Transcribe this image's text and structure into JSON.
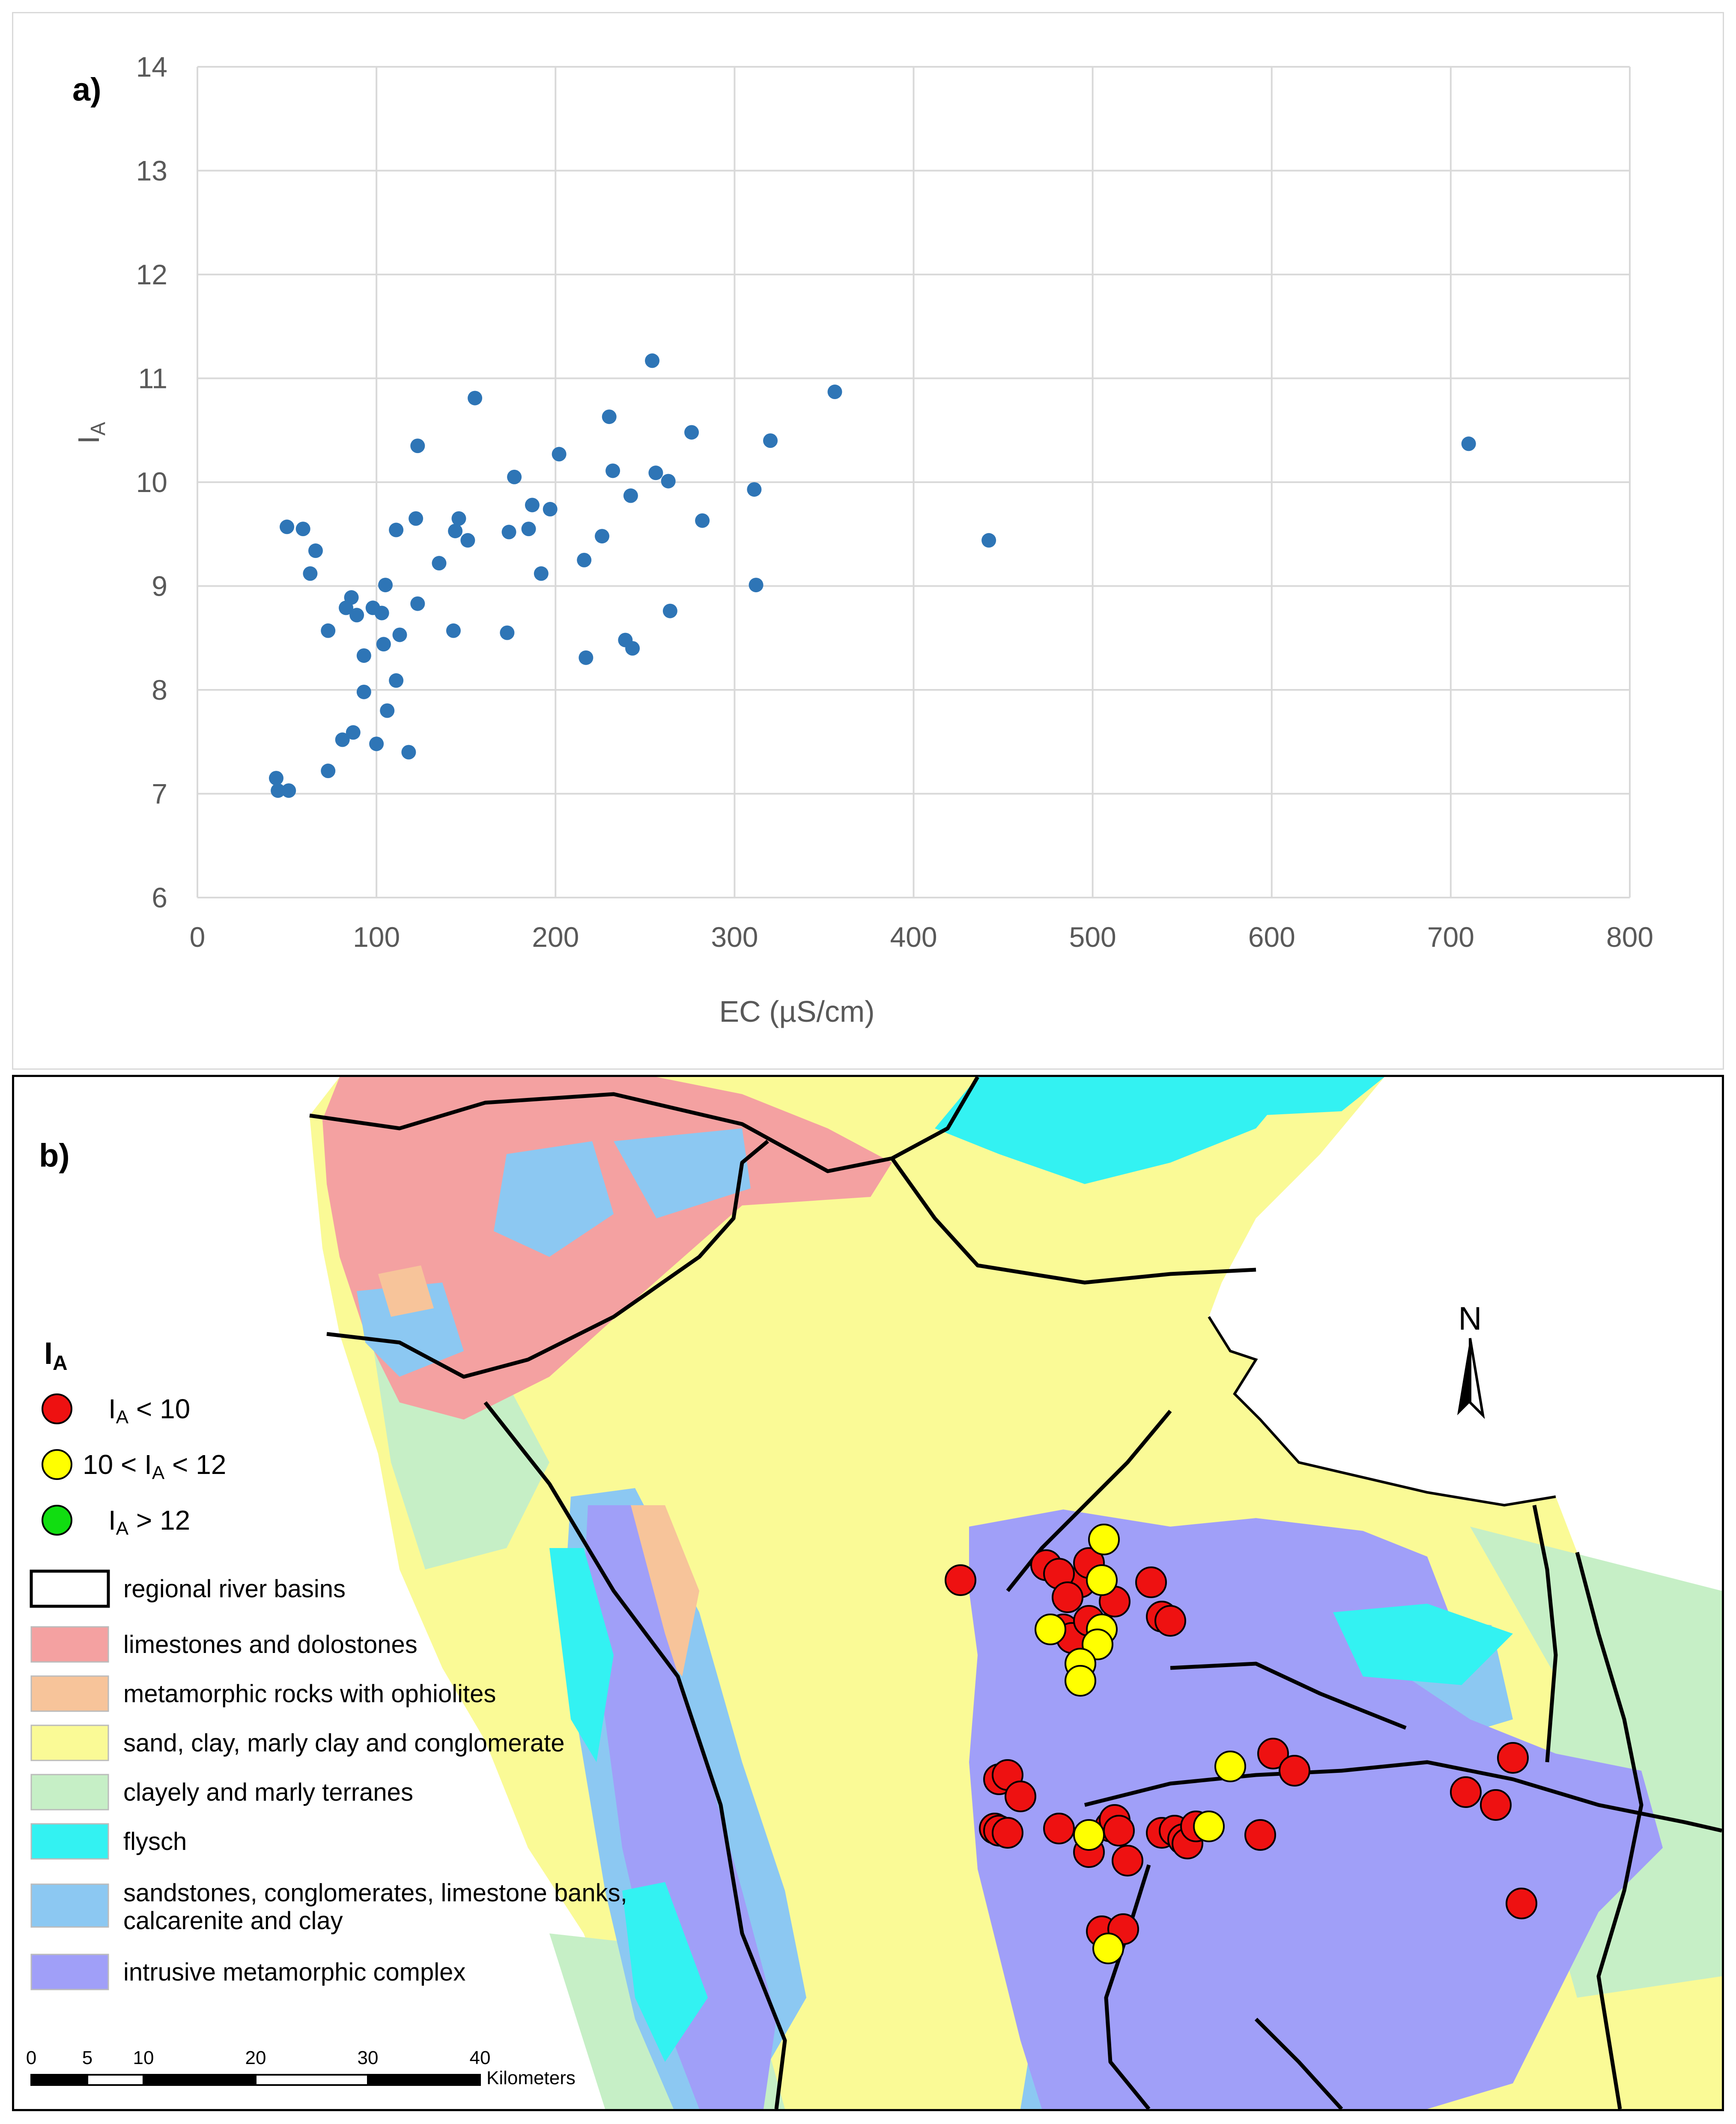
{
  "panel_a": {
    "label": "a)",
    "chart_data": {
      "type": "scatter",
      "title": "",
      "xlabel": "EC (µS/cm)",
      "ylabel_main": "I",
      "ylabel_sub": "A",
      "xlim": [
        0,
        800
      ],
      "ylim": [
        6,
        14
      ],
      "x_ticks": [
        0,
        100,
        200,
        300,
        400,
        500,
        600,
        700,
        800
      ],
      "y_ticks": [
        6,
        7,
        8,
        9,
        10,
        11,
        12,
        13,
        14
      ],
      "x_tick_labels": [
        "0",
        "100",
        "200",
        "300",
        "400",
        "500",
        "600",
        "700",
        "800"
      ],
      "y_tick_labels": [
        "6",
        "7",
        "8",
        "9",
        "10",
        "11",
        "12",
        "13",
        "14"
      ],
      "grid": true,
      "marker_color": "#2e75b6",
      "points": [
        [
          44,
          7.15
        ],
        [
          45,
          7.03
        ],
        [
          51,
          7.03
        ],
        [
          50,
          9.57
        ],
        [
          59,
          9.55
        ],
        [
          63,
          9.12
        ],
        [
          66,
          9.34
        ],
        [
          73,
          8.57
        ],
        [
          73,
          7.22
        ],
        [
          81,
          7.52
        ],
        [
          83,
          8.79
        ],
        [
          86,
          8.89
        ],
        [
          87,
          7.59
        ],
        [
          89,
          8.72
        ],
        [
          93,
          8.33
        ],
        [
          93,
          7.98
        ],
        [
          98,
          8.79
        ],
        [
          100,
          7.48
        ],
        [
          103,
          8.74
        ],
        [
          104,
          8.44
        ],
        [
          105,
          9.01
        ],
        [
          106,
          7.8
        ],
        [
          111,
          9.54
        ],
        [
          111,
          8.09
        ],
        [
          113,
          8.53
        ],
        [
          118,
          7.4
        ],
        [
          122,
          9.65
        ],
        [
          123,
          10.35
        ],
        [
          123,
          8.83
        ],
        [
          135,
          9.22
        ],
        [
          143,
          8.57
        ],
        [
          144,
          9.53
        ],
        [
          146,
          9.65
        ],
        [
          151,
          9.44
        ],
        [
          155,
          10.81
        ],
        [
          173,
          8.55
        ],
        [
          174,
          9.52
        ],
        [
          177,
          10.05
        ],
        [
          185,
          9.55
        ],
        [
          187,
          9.78
        ],
        [
          192,
          9.12
        ],
        [
          197,
          9.74
        ],
        [
          202,
          10.27
        ],
        [
          216,
          9.25
        ],
        [
          217,
          8.31
        ],
        [
          226,
          9.48
        ],
        [
          230,
          10.63
        ],
        [
          232,
          10.11
        ],
        [
          239,
          8.48
        ],
        [
          242,
          9.87
        ],
        [
          243,
          8.4
        ],
        [
          254,
          11.17
        ],
        [
          256,
          10.09
        ],
        [
          263,
          10.01
        ],
        [
          264,
          8.76
        ],
        [
          276,
          10.48
        ],
        [
          282,
          9.63
        ],
        [
          311,
          9.93
        ],
        [
          312,
          9.01
        ],
        [
          320,
          10.4
        ],
        [
          356,
          10.87
        ],
        [
          442,
          9.44
        ],
        [
          710,
          10.37
        ]
      ]
    }
  },
  "panel_b": {
    "label": "b)",
    "colors": {
      "limestone": "#f4a1a1",
      "metamorphic_ophiolites": "#f7c49a",
      "sand_clay": "#fafa96",
      "clayey": "#c6efc6",
      "flysch": "#33f2f2",
      "sandstones": "#8cc8f2",
      "intrusive": "#a09ff8",
      "red": "#ee1111",
      "yellow": "#ffff00",
      "green": "#11dd11"
    },
    "north_label": "N",
    "legend": {
      "title_main": "I",
      "title_sub": "A",
      "ia_items": [
        {
          "label_pre": "",
          "label_main": "I",
          "label_sub": "A",
          "label_post": " < 10",
          "color": "#ee1111"
        },
        {
          "label_pre": "10 < ",
          "label_main": "I",
          "label_sub": "A",
          "label_post": " < 12",
          "color": "#ffff00"
        },
        {
          "label_pre": "",
          "label_main": "I",
          "label_sub": "A",
          "label_post": " > 12",
          "color": "#11dd11"
        }
      ],
      "geo_items": [
        {
          "label": "regional river basins",
          "color": "#ffffff"
        },
        {
          "label": "limestones and dolostones",
          "color": "#f4a1a1"
        },
        {
          "label": "metamorphic rocks with ophiolites",
          "color": "#f7c49a"
        },
        {
          "label": "sand, clay, marly clay and conglomerate",
          "color": "#fafa96"
        },
        {
          "label": "clayely and marly terranes",
          "color": "#c6efc6"
        },
        {
          "label": "flysch",
          "color": "#33f2f2"
        },
        {
          "label": "sandstones, conglomerates, limestone banks,",
          "label2": "calcarenite and clay",
          "color": "#8cc8f2"
        },
        {
          "label": "intrusive metamorphic complex",
          "color": "#a09ff8"
        }
      ]
    },
    "scale": {
      "ticks": [
        "0",
        "5",
        "10",
        "20",
        "30",
        "40"
      ],
      "unit": "Kilometers"
    }
  }
}
